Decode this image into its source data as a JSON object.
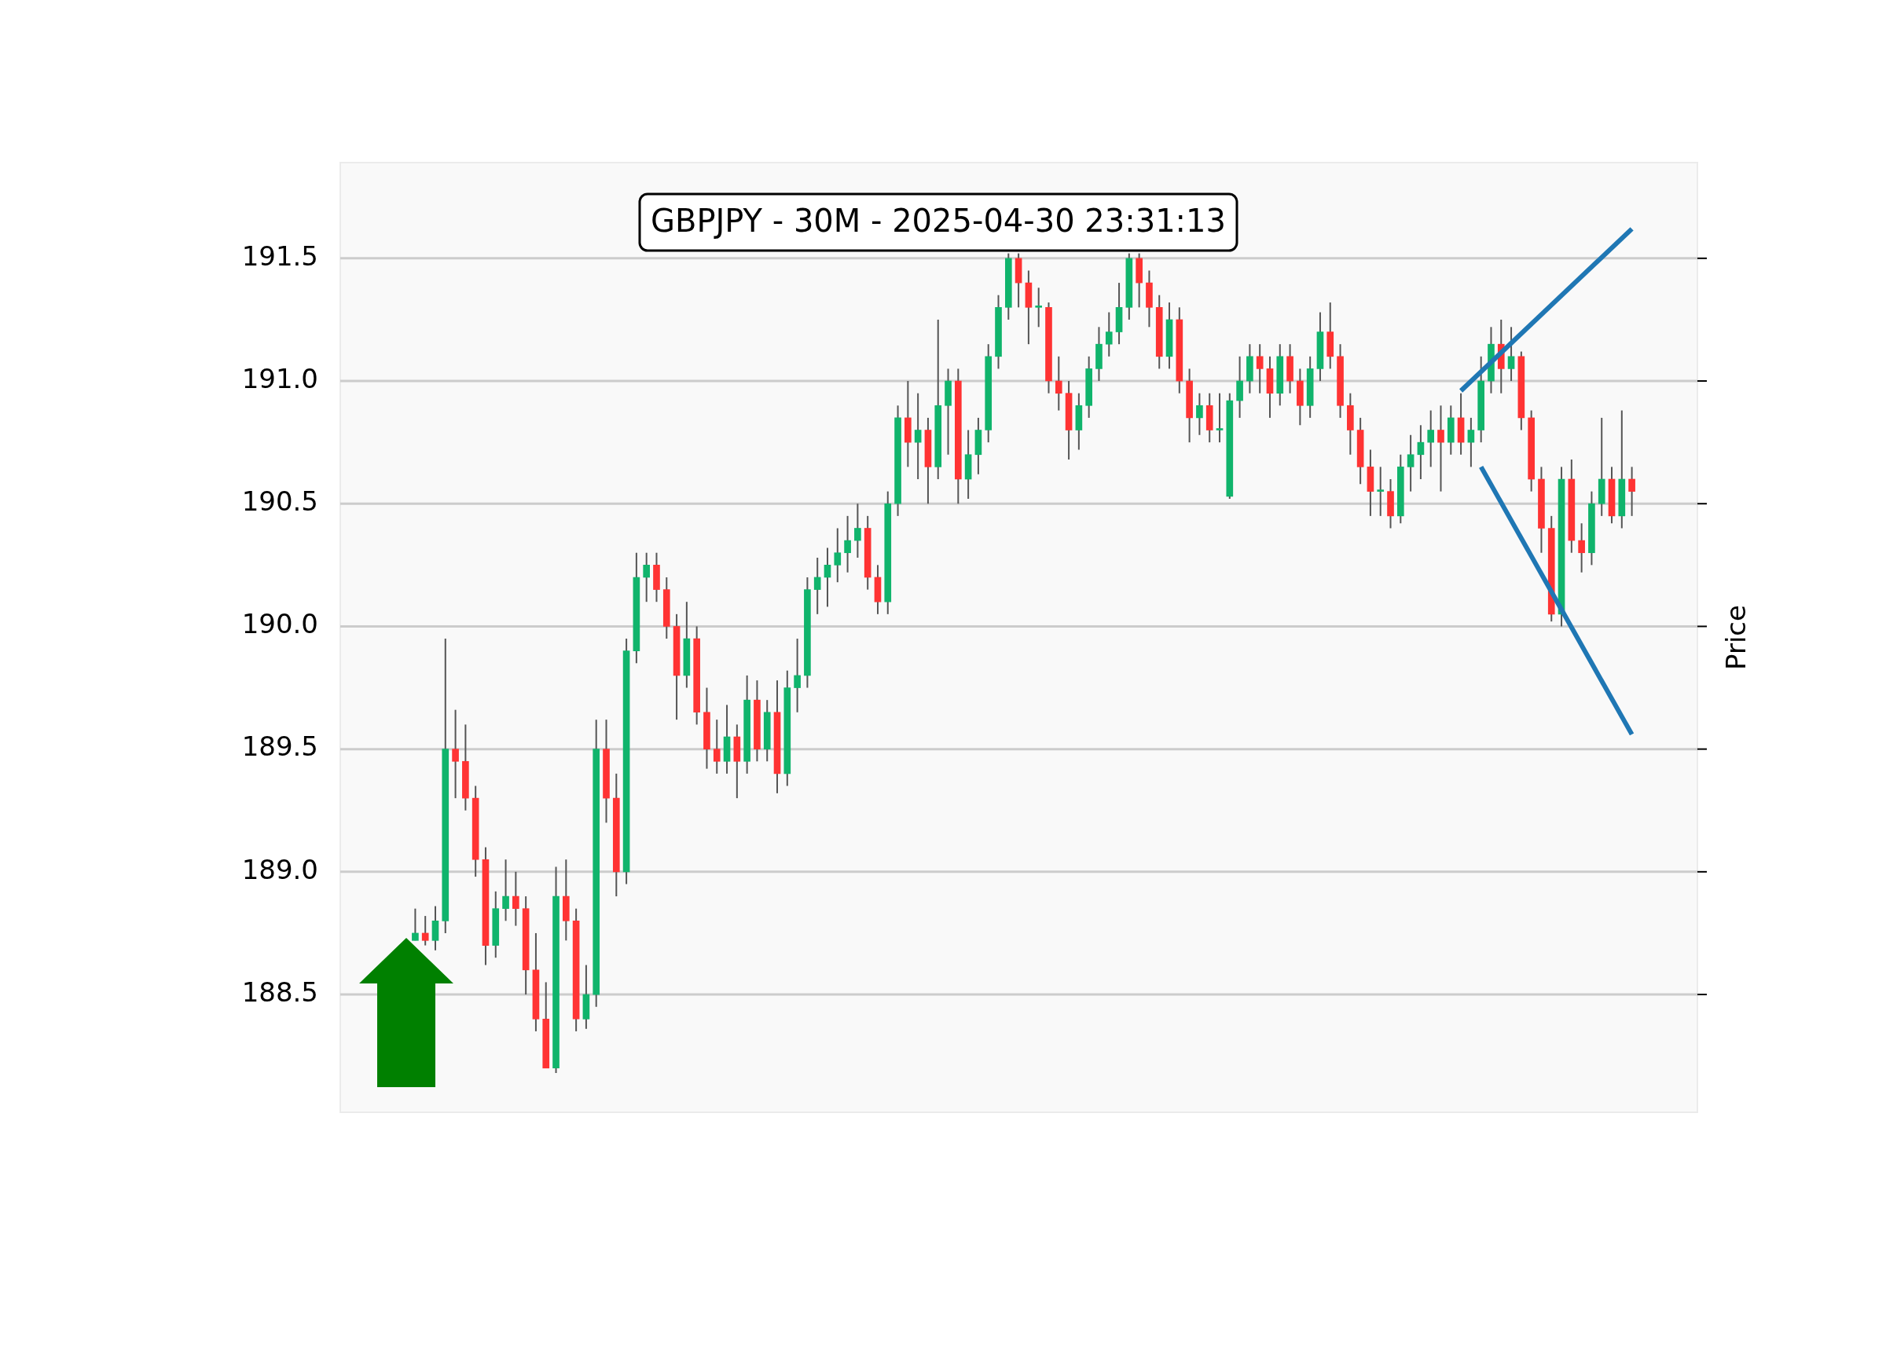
{
  "chart_data": {
    "type": "candlestick",
    "title": "GBPJPY - 30M - 2025-04-30 23:31:13",
    "ylabel": "Price",
    "categories": [
      null,
      null,
      null,
      null,
      null,
      null,
      null,
      null,
      null,
      null,
      null,
      null,
      null,
      null,
      null,
      null,
      null,
      null,
      null,
      null,
      null,
      null,
      null,
      null,
      null,
      null,
      null,
      null,
      null,
      null,
      null,
      null,
      null,
      null,
      null,
      null,
      null,
      null,
      null,
      null,
      null,
      null,
      null,
      null,
      null,
      null,
      null,
      null,
      null,
      null,
      null,
      null,
      null,
      null,
      null,
      null,
      null,
      null,
      null,
      null,
      null,
      null,
      null,
      null,
      null,
      null,
      null,
      null,
      null,
      null,
      null,
      null,
      null,
      null,
      null,
      null,
      null,
      null,
      null,
      null,
      null,
      null,
      null,
      null,
      null,
      null,
      null,
      null,
      null,
      null,
      null,
      null,
      null,
      null,
      null,
      null,
      null,
      null,
      null,
      null,
      null,
      null,
      null,
      null,
      null,
      null,
      null,
      null,
      null,
      null,
      null,
      null,
      null,
      null,
      null,
      null,
      null,
      null,
      null,
      null,
      null,
      null
    ],
    "ohlc": [
      [
        188.72,
        188.85,
        188.72,
        188.75
      ],
      [
        188.75,
        188.82,
        188.7,
        188.72
      ],
      [
        188.72,
        188.86,
        188.68,
        188.8
      ],
      [
        188.8,
        189.95,
        188.75,
        189.5
      ],
      [
        189.5,
        189.66,
        189.3,
        189.45
      ],
      [
        189.45,
        189.6,
        189.25,
        189.3
      ],
      [
        189.3,
        189.35,
        188.98,
        189.05
      ],
      [
        189.05,
        189.1,
        188.62,
        188.7
      ],
      [
        188.7,
        188.92,
        188.65,
        188.85
      ],
      [
        188.85,
        189.05,
        188.8,
        188.9
      ],
      [
        188.9,
        189.0,
        188.78,
        188.85
      ],
      [
        188.85,
        188.9,
        188.5,
        188.6
      ],
      [
        188.6,
        188.75,
        188.35,
        188.4
      ],
      [
        188.4,
        188.55,
        188.2,
        188.2
      ],
      [
        188.2,
        189.02,
        188.18,
        188.9
      ],
      [
        188.9,
        189.05,
        188.72,
        188.8
      ],
      [
        188.8,
        188.85,
        188.35,
        188.4
      ],
      [
        188.4,
        188.62,
        188.36,
        188.5
      ],
      [
        188.5,
        189.62,
        188.45,
        189.5
      ],
      [
        189.5,
        189.62,
        189.2,
        189.3
      ],
      [
        189.3,
        189.4,
        188.9,
        189.0
      ],
      [
        189.0,
        189.95,
        188.95,
        189.9
      ],
      [
        189.9,
        190.3,
        189.85,
        190.2
      ],
      [
        190.2,
        190.3,
        190.1,
        190.25
      ],
      [
        190.25,
        190.3,
        190.1,
        190.15
      ],
      [
        190.15,
        190.2,
        189.95,
        190.0
      ],
      [
        190.0,
        190.05,
        189.62,
        189.8
      ],
      [
        189.8,
        190.1,
        189.75,
        189.95
      ],
      [
        189.95,
        190.0,
        189.6,
        189.65
      ],
      [
        189.65,
        189.75,
        189.42,
        189.5
      ],
      [
        189.5,
        189.62,
        189.4,
        189.45
      ],
      [
        189.45,
        189.68,
        189.4,
        189.55
      ],
      [
        189.55,
        189.6,
        189.3,
        189.45
      ],
      [
        189.45,
        189.8,
        189.4,
        189.7
      ],
      [
        189.7,
        189.78,
        189.45,
        189.5
      ],
      [
        189.5,
        189.7,
        189.45,
        189.65
      ],
      [
        189.65,
        189.78,
        189.32,
        189.4
      ],
      [
        189.4,
        189.82,
        189.35,
        189.75
      ],
      [
        189.75,
        189.95,
        189.65,
        189.8
      ],
      [
        189.8,
        190.2,
        189.75,
        190.15
      ],
      [
        190.15,
        190.28,
        190.05,
        190.2
      ],
      [
        190.2,
        190.32,
        190.08,
        190.25
      ],
      [
        190.25,
        190.4,
        190.18,
        190.3
      ],
      [
        190.3,
        190.45,
        190.22,
        190.35
      ],
      [
        190.35,
        190.5,
        190.28,
        190.4
      ],
      [
        190.4,
        190.45,
        190.15,
        190.2
      ],
      [
        190.2,
        190.25,
        190.05,
        190.1
      ],
      [
        190.1,
        190.55,
        190.05,
        190.5
      ],
      [
        190.5,
        190.9,
        190.45,
        190.85
      ],
      [
        190.85,
        191.0,
        190.65,
        190.75
      ],
      [
        190.75,
        190.95,
        190.6,
        190.8
      ],
      [
        190.8,
        190.85,
        190.5,
        190.65
      ],
      [
        190.65,
        191.25,
        190.6,
        190.9
      ],
      [
        190.9,
        191.05,
        190.7,
        191.0
      ],
      [
        191.0,
        191.05,
        190.5,
        190.6
      ],
      [
        190.6,
        190.8,
        190.52,
        190.7
      ],
      [
        190.7,
        190.85,
        190.62,
        190.8
      ],
      [
        190.8,
        191.15,
        190.75,
        191.1
      ],
      [
        191.1,
        191.35,
        191.05,
        191.3
      ],
      [
        191.3,
        191.52,
        191.25,
        191.5
      ],
      [
        191.5,
        191.52,
        191.3,
        191.4
      ],
      [
        191.4,
        191.45,
        191.15,
        191.3
      ],
      [
        191.3,
        191.38,
        191.22,
        191.3
      ],
      [
        191.3,
        191.32,
        190.95,
        191.0
      ],
      [
        191.0,
        191.1,
        190.88,
        190.95
      ],
      [
        190.95,
        191.0,
        190.68,
        190.8
      ],
      [
        190.8,
        190.95,
        190.72,
        190.9
      ],
      [
        190.9,
        191.1,
        190.85,
        191.05
      ],
      [
        191.05,
        191.22,
        191.0,
        191.15
      ],
      [
        191.15,
        191.28,
        191.1,
        191.2
      ],
      [
        191.2,
        191.4,
        191.15,
        191.3
      ],
      [
        191.3,
        191.52,
        191.25,
        191.5
      ],
      [
        191.5,
        191.52,
        191.3,
        191.4
      ],
      [
        191.4,
        191.45,
        191.22,
        191.3
      ],
      [
        191.3,
        191.35,
        191.05,
        191.1
      ],
      [
        191.1,
        191.32,
        191.05,
        191.25
      ],
      [
        191.25,
        191.3,
        190.95,
        191.0
      ],
      [
        191.0,
        191.05,
        190.75,
        190.85
      ],
      [
        190.85,
        190.95,
        190.78,
        190.9
      ],
      [
        190.9,
        190.95,
        190.75,
        190.8
      ],
      [
        190.8,
        190.95,
        190.75,
        190.8
      ],
      [
        190.53,
        190.95,
        190.52,
        190.92
      ],
      [
        190.92,
        191.1,
        190.85,
        191.0
      ],
      [
        191.0,
        191.15,
        190.95,
        191.1
      ],
      [
        191.1,
        191.15,
        190.95,
        191.05
      ],
      [
        191.05,
        191.1,
        190.85,
        190.95
      ],
      [
        190.95,
        191.15,
        190.9,
        191.1
      ],
      [
        191.1,
        191.15,
        190.95,
        191.0
      ],
      [
        191.0,
        191.05,
        190.82,
        190.9
      ],
      [
        190.9,
        191.1,
        190.85,
        191.05
      ],
      [
        191.05,
        191.28,
        191.0,
        191.2
      ],
      [
        191.2,
        191.32,
        191.05,
        191.1
      ],
      [
        191.1,
        191.15,
        190.85,
        190.9
      ],
      [
        190.9,
        190.95,
        190.7,
        190.8
      ],
      [
        190.8,
        190.85,
        190.58,
        190.65
      ],
      [
        190.65,
        190.72,
        190.45,
        190.55
      ],
      [
        190.55,
        190.65,
        190.45,
        190.55
      ],
      [
        190.55,
        190.6,
        190.4,
        190.45
      ],
      [
        190.45,
        190.7,
        190.42,
        190.65
      ],
      [
        190.65,
        190.78,
        190.55,
        190.7
      ],
      [
        190.7,
        190.82,
        190.6,
        190.75
      ],
      [
        190.75,
        190.88,
        190.65,
        190.8
      ],
      [
        190.8,
        190.9,
        190.55,
        190.75
      ],
      [
        190.75,
        190.9,
        190.7,
        190.85
      ],
      [
        190.85,
        190.95,
        190.7,
        190.75
      ],
      [
        190.75,
        190.85,
        190.65,
        190.8
      ],
      [
        190.8,
        191.1,
        190.75,
        191.0
      ],
      [
        191.0,
        191.22,
        190.95,
        191.15
      ],
      [
        191.15,
        191.25,
        190.95,
        191.05
      ],
      [
        191.05,
        191.22,
        191.0,
        191.1
      ],
      [
        191.1,
        191.12,
        190.8,
        190.85
      ],
      [
        190.85,
        190.88,
        190.55,
        190.6
      ],
      [
        190.6,
        190.65,
        190.3,
        190.4
      ],
      [
        190.4,
        190.45,
        190.02,
        190.05
      ],
      [
        190.05,
        190.65,
        190.0,
        190.6
      ],
      [
        190.6,
        190.68,
        190.3,
        190.35
      ],
      [
        190.35,
        190.42,
        190.22,
        190.3
      ],
      [
        190.3,
        190.55,
        190.25,
        190.5
      ],
      [
        190.5,
        190.85,
        190.45,
        190.6
      ],
      [
        190.6,
        190.65,
        190.42,
        190.45
      ],
      [
        190.45,
        190.88,
        190.4,
        190.6
      ],
      [
        190.6,
        190.65,
        190.45,
        190.55
      ]
    ],
    "series": [
      {
        "type": "line",
        "color": "#1f77b4",
        "values": [
          null,
          null,
          null,
          null,
          null,
          null,
          null,
          null,
          null,
          null,
          null,
          null,
          null,
          null,
          null,
          null,
          null,
          null,
          null,
          null,
          null,
          null,
          null,
          null,
          null,
          null,
          null,
          null,
          null,
          null,
          null,
          null,
          null,
          null,
          null,
          null,
          null,
          null,
          null,
          null,
          null,
          null,
          null,
          null,
          null,
          null,
          null,
          null,
          null,
          null,
          null,
          null,
          null,
          null,
          null,
          null,
          null,
          null,
          null,
          null,
          null,
          null,
          null,
          null,
          null,
          null,
          null,
          null,
          null,
          null,
          null,
          null,
          null,
          null,
          null,
          null,
          null,
          null,
          null,
          null,
          null,
          null,
          null,
          null,
          null,
          null,
          null,
          null,
          null,
          null,
          null,
          null,
          null,
          null,
          null,
          null,
          null,
          null,
          null,
          null,
          null,
          null,
          null,
          null,
          190.96,
          null,
          null,
          null,
          null,
          null,
          null,
          null,
          null,
          null,
          null,
          null,
          null,
          null,
          null,
          null,
          null,
          191.62
        ]
      },
      {
        "type": "line",
        "color": "#1f77b4",
        "values": [
          null,
          null,
          null,
          null,
          null,
          null,
          null,
          null,
          null,
          null,
          null,
          null,
          null,
          null,
          null,
          null,
          null,
          null,
          null,
          null,
          null,
          null,
          null,
          null,
          null,
          null,
          null,
          null,
          null,
          null,
          null,
          null,
          null,
          null,
          null,
          null,
          null,
          null,
          null,
          null,
          null,
          null,
          null,
          null,
          null,
          null,
          null,
          null,
          null,
          null,
          null,
          null,
          null,
          null,
          null,
          null,
          null,
          null,
          null,
          null,
          null,
          null,
          null,
          null,
          null,
          null,
          null,
          null,
          null,
          null,
          null,
          null,
          null,
          null,
          null,
          null,
          null,
          null,
          null,
          null,
          null,
          null,
          null,
          null,
          null,
          null,
          null,
          null,
          null,
          null,
          null,
          null,
          null,
          null,
          null,
          null,
          null,
          null,
          null,
          null,
          null,
          null,
          null,
          null,
          null,
          null,
          190.65,
          null,
          null,
          null,
          null,
          null,
          null,
          null,
          null,
          null,
          null,
          null,
          null,
          null,
          null,
          189.56
        ]
      }
    ],
    "ylim": [
      188.02,
      191.89
    ],
    "yticks": [
      188.5,
      {
        "value": 189,
        "label": "189.0"
      },
      189.5,
      {
        "value": 190,
        "label": "190.0"
      },
      190.5,
      {
        "value": 191,
        "label": "191.0"
      },
      191.5
    ],
    "grid": "y",
    "tick_labels": "y",
    "legend": false
  }
}
